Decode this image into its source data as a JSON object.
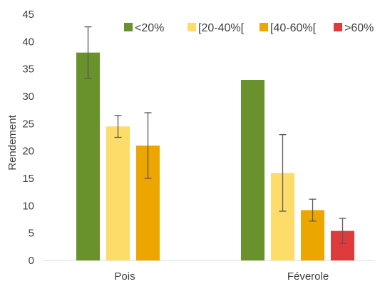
{
  "chart_data": {
    "type": "bar",
    "ylabel": "Rendement",
    "xlabel": "",
    "ylim": [
      0,
      45
    ],
    "yticks": [
      0,
      5,
      10,
      15,
      20,
      25,
      30,
      35,
      40,
      45
    ],
    "grid": false,
    "legend_position": "top-right",
    "categories": [
      "Pois",
      "Féverole"
    ],
    "series": [
      {
        "name": "<20%",
        "color": "#6a922c",
        "values": [
          38,
          33
        ],
        "error": [
          4.7,
          null
        ]
      },
      {
        "name": "[20-40%[",
        "color": "#fddc6a",
        "values": [
          24.5,
          16
        ],
        "error": [
          2.0,
          7.0
        ]
      },
      {
        "name": "[40-60%[",
        "color": "#eda600",
        "values": [
          21,
          9.2
        ],
        "error": [
          6.0,
          2.0
        ]
      },
      {
        "name": ">60%",
        "color": "#de3b3d",
        "values": [
          null,
          5.4
        ],
        "error": [
          null,
          2.3
        ]
      }
    ]
  }
}
